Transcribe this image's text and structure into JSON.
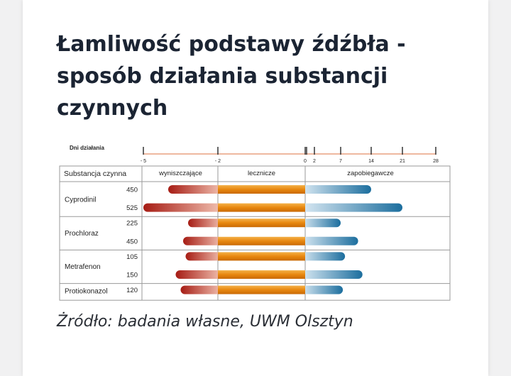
{
  "article": {
    "title": "Łamliwość podstawy źdźbła - sposób działania substancji czynnych",
    "caption": "Żródło: badania własne, UWM Olsztyn"
  },
  "colors": {
    "destroying_dark": "#a61c14",
    "destroying_light": "#f2c2b2",
    "curative": "#e8870f",
    "curative_light": "#f3b14a",
    "preventive_dark": "#1c6e9e",
    "preventive_light": "#dbeaf4",
    "axis_line": "#e8a080"
  },
  "chart_data": {
    "type": "bar",
    "axis_label": "Dni działania",
    "axis_ticks": [
      -5,
      -2,
      0,
      2,
      7,
      14,
      21,
      28
    ],
    "column_header": "Substancja czynna",
    "phases": [
      {
        "name": "wyniszczające",
        "range": [
          -5,
          -2
        ]
      },
      {
        "name": "lecznicze",
        "range": [
          -2,
          0
        ]
      },
      {
        "name": "zapobiegawcze",
        "range": [
          0,
          28
        ]
      }
    ],
    "substances": [
      {
        "name": "Cyprodinil",
        "doses": [
          {
            "dose": "450",
            "start": -4.0,
            "end": 14
          },
          {
            "dose": "525",
            "start": -5.0,
            "end": 21
          }
        ]
      },
      {
        "name": "Prochloraz",
        "doses": [
          {
            "dose": "225",
            "start": -3.2,
            "end": 7
          },
          {
            "dose": "450",
            "start": -3.4,
            "end": 11
          }
        ]
      },
      {
        "name": "Metrafenon",
        "doses": [
          {
            "dose": "105",
            "start": -3.3,
            "end": 8
          },
          {
            "dose": "150",
            "start": -3.7,
            "end": 12
          }
        ]
      },
      {
        "name": "Protiokonazol",
        "doses": [
          {
            "dose": "120",
            "start": -3.5,
            "end": 7.5
          }
        ]
      }
    ]
  }
}
